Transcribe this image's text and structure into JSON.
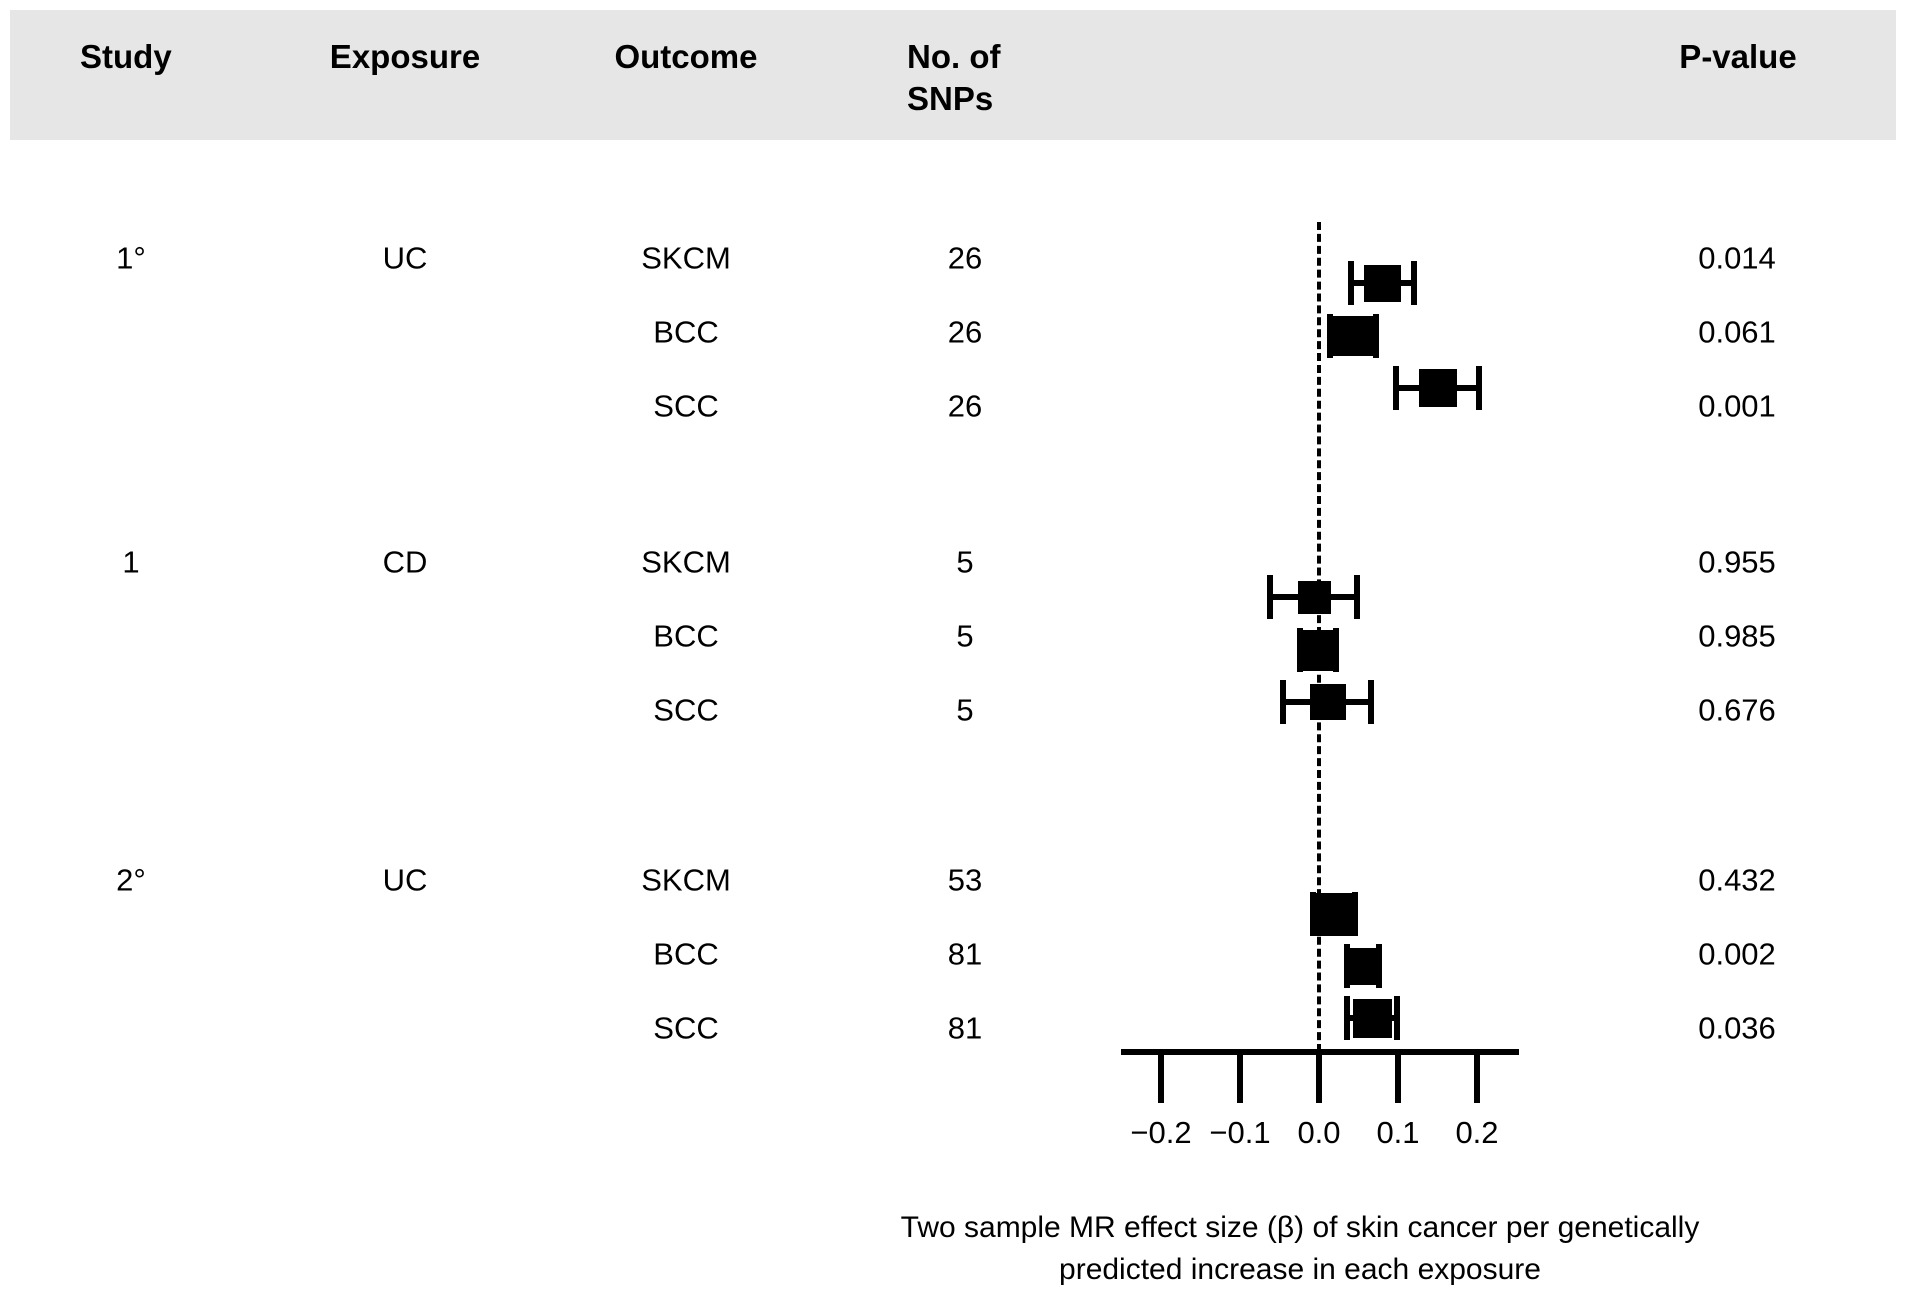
{
  "header": {
    "study": "Study",
    "exposure": "Exposure",
    "outcome": "Outcome",
    "snps_line1": "No. of",
    "snps_line2": "SNPs",
    "pvalue": "P-value"
  },
  "colors": {
    "header_band": "#e6e6e6",
    "ink": "#000000"
  },
  "chart_data": {
    "type": "forest",
    "title": "",
    "xlabel_line1": "Two sample MR effect size (β) of skin cancer per genetically",
    "xlabel_line2": "predicted increase in each exposure",
    "x_axis": {
      "min": -0.25,
      "max": 0.25,
      "ticks": [
        -0.2,
        -0.1,
        0.0,
        0.1,
        0.2
      ],
      "tick_labels": [
        "−0.2",
        "−0.1",
        "0.0",
        "0.1",
        "0.2"
      ],
      "zero_reference_line": "dashed"
    },
    "legend": "none",
    "grid": "off",
    "groups": [
      {
        "study": "1°",
        "exposure": "UC",
        "rows": [
          {
            "outcome": "SKCM",
            "snps": "26",
            "beta": 0.08,
            "ci": [
              0.04,
              0.12
            ],
            "pvalue": "0.014",
            "weight": 37
          },
          {
            "outcome": "BCC",
            "snps": "26",
            "beta": 0.043,
            "ci": [
              0.014,
              0.072
            ],
            "pvalue": "0.061",
            "weight": 40
          },
          {
            "outcome": "SCC",
            "snps": "26",
            "beta": 0.15,
            "ci": [
              0.098,
              0.202
            ],
            "pvalue": "0.001",
            "weight": 38
          }
        ]
      },
      {
        "study": "1",
        "exposure": "CD",
        "rows": [
          {
            "outcome": "SKCM",
            "snps": "5",
            "beta": -0.006,
            "ci": [
              -0.062,
              0.048
            ],
            "pvalue": "0.955",
            "weight": 33
          },
          {
            "outcome": "BCC",
            "snps": "5",
            "beta": -0.001,
            "ci": [
              -0.024,
              0.022
            ],
            "pvalue": "0.985",
            "weight": 41
          },
          {
            "outcome": "SCC",
            "snps": "5",
            "beta": 0.012,
            "ci": [
              -0.046,
              0.066
            ],
            "pvalue": "0.676",
            "weight": 36
          }
        ]
      },
      {
        "study": "2°",
        "exposure": "UC",
        "rows": [
          {
            "outcome": "SKCM",
            "snps": "53",
            "beta": 0.019,
            "ci": [
              -0.007,
              0.046
            ],
            "pvalue": "0.432",
            "weight": 43
          },
          {
            "outcome": "BCC",
            "snps": "81",
            "beta": 0.056,
            "ci": [
              0.036,
              0.076
            ],
            "pvalue": "0.002",
            "weight": 37
          },
          {
            "outcome": "SCC",
            "snps": "81",
            "beta": 0.068,
            "ci": [
              0.036,
              0.099
            ],
            "pvalue": "0.036",
            "weight": 39
          }
        ]
      }
    ]
  }
}
